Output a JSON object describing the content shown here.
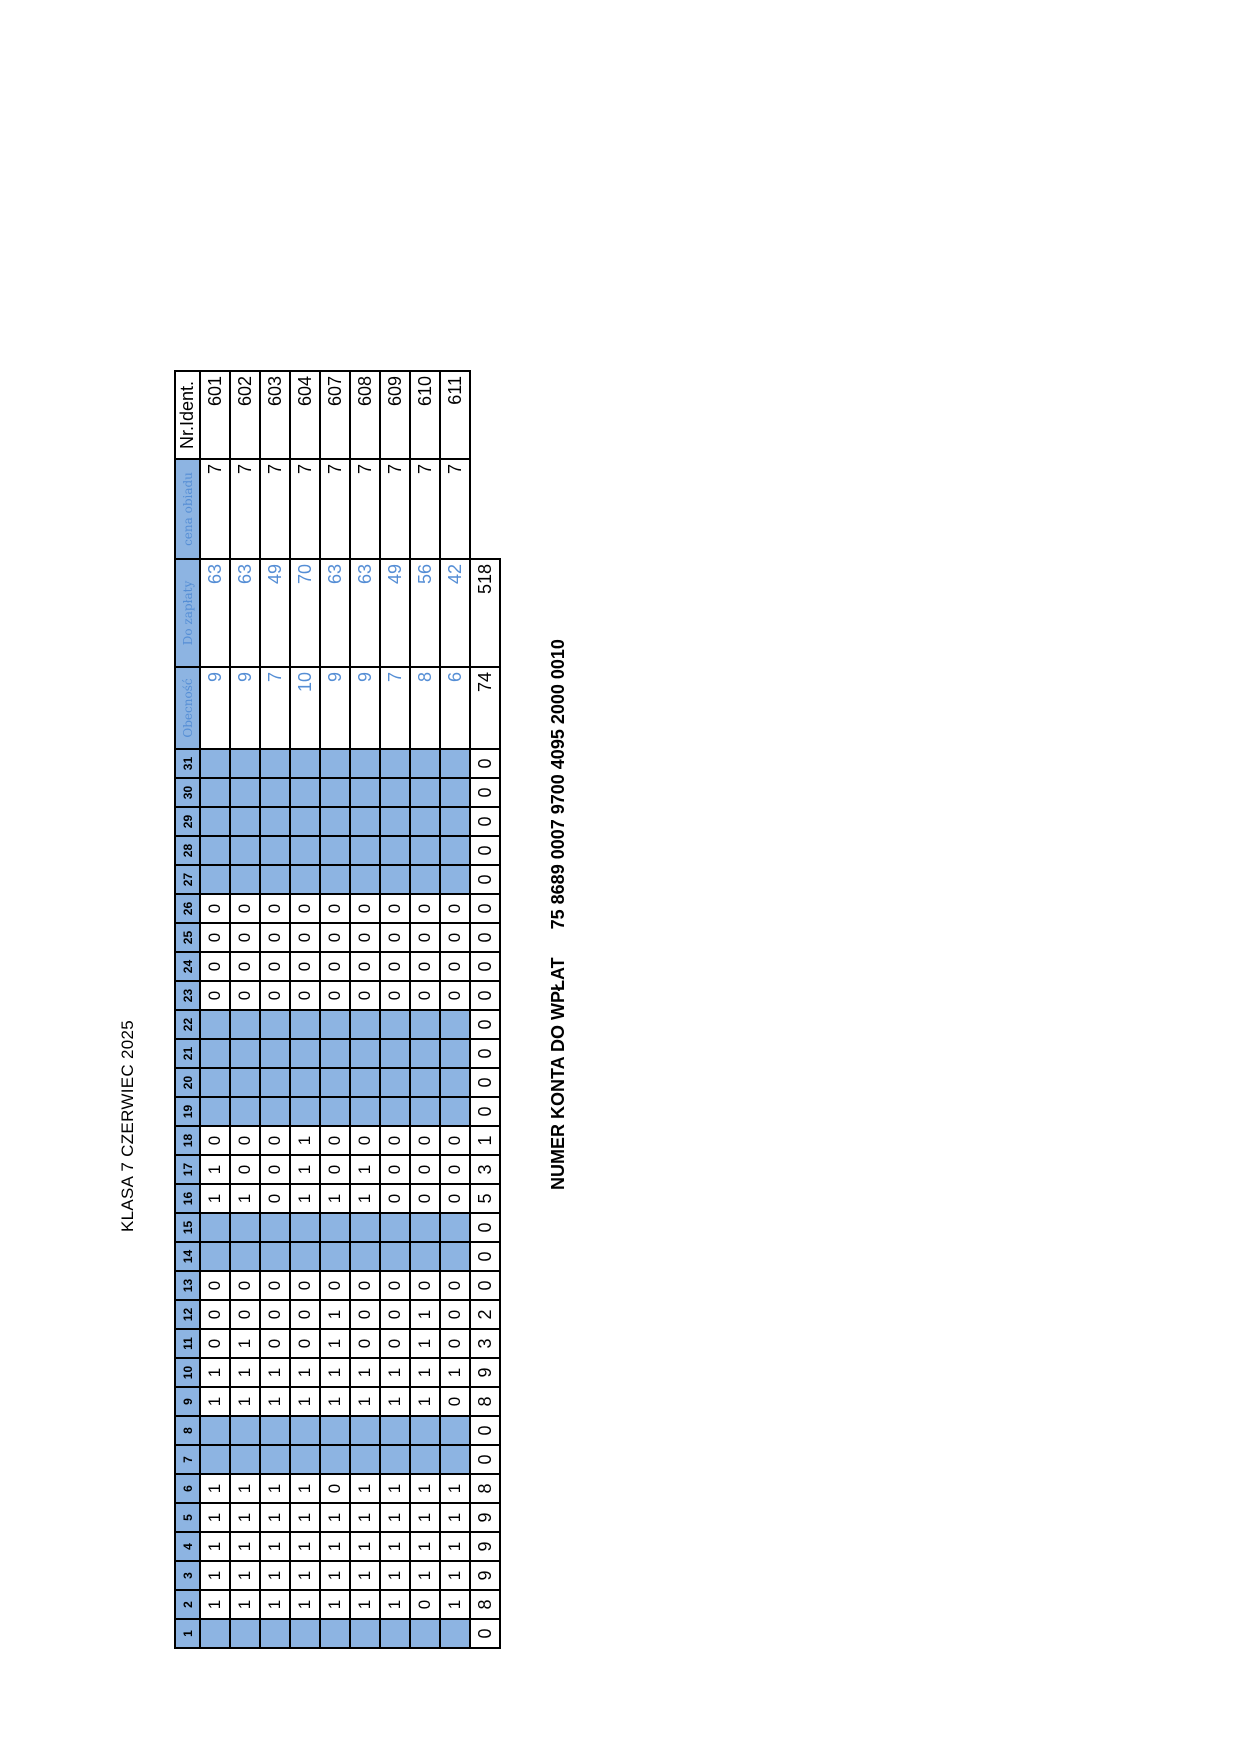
{
  "title": "KLASA 7 CZERWIEC 2025",
  "table": {
    "day_headers": [
      "1",
      "2",
      "3",
      "4",
      "5",
      "6",
      "7",
      "8",
      "9",
      "10",
      "11",
      "12",
      "13",
      "14",
      "15",
      "16",
      "17",
      "18",
      "19",
      "20",
      "21",
      "22",
      "23",
      "24",
      "25",
      "26",
      "27",
      "28",
      "29",
      "30",
      "31"
    ],
    "col_obecnosc": "Obecność",
    "col_do_zaplaty": "Do zapłaty",
    "col_cena_obiadu": "cena obiadu",
    "col_nr_ident": "Nr.Ident.",
    "blue_days": [
      1,
      7,
      8,
      14,
      15,
      19,
      20,
      21,
      22,
      27,
      28,
      29,
      30,
      31
    ],
    "rows": [
      {
        "days": [
          "",
          "1",
          "1",
          "1",
          "1",
          "1",
          "",
          "",
          "1",
          "1",
          "0",
          "0",
          "0",
          "",
          "",
          "1",
          "1",
          "0",
          "",
          "",
          "",
          "",
          "0",
          "0",
          "0",
          "0",
          "",
          "",
          "",
          "",
          ""
        ],
        "obecnosc": "9",
        "do_zaplaty": "63",
        "cena": "7",
        "nr": "601"
      },
      {
        "days": [
          "",
          "1",
          "1",
          "1",
          "1",
          "1",
          "",
          "",
          "1",
          "1",
          "1",
          "0",
          "0",
          "",
          "",
          "1",
          "0",
          "0",
          "",
          "",
          "",
          "",
          "0",
          "0",
          "0",
          "0",
          "",
          "",
          "",
          "",
          ""
        ],
        "obecnosc": "9",
        "do_zaplaty": "63",
        "cena": "7",
        "nr": "602"
      },
      {
        "days": [
          "",
          "1",
          "1",
          "1",
          "1",
          "1",
          "",
          "",
          "1",
          "1",
          "0",
          "0",
          "0",
          "",
          "",
          "0",
          "0",
          "0",
          "",
          "",
          "",
          "",
          "0",
          "0",
          "0",
          "0",
          "",
          "",
          "",
          "",
          ""
        ],
        "obecnosc": "7",
        "do_zaplaty": "49",
        "cena": "7",
        "nr": "603"
      },
      {
        "days": [
          "",
          "1",
          "1",
          "1",
          "1",
          "1",
          "",
          "",
          "1",
          "1",
          "0",
          "0",
          "0",
          "",
          "",
          "1",
          "1",
          "1",
          "",
          "",
          "",
          "",
          "0",
          "0",
          "0",
          "0",
          "",
          "",
          "",
          "",
          ""
        ],
        "obecnosc": "10",
        "do_zaplaty": "70",
        "cena": "7",
        "nr": "604"
      },
      {
        "days": [
          "",
          "1",
          "1",
          "1",
          "1",
          "0",
          "",
          "",
          "1",
          "1",
          "1",
          "1",
          "0",
          "",
          "",
          "1",
          "0",
          "0",
          "",
          "",
          "",
          "",
          "0",
          "0",
          "0",
          "0",
          "",
          "",
          "",
          "",
          ""
        ],
        "obecnosc": "9",
        "do_zaplaty": "63",
        "cena": "7",
        "nr": "607"
      },
      {
        "days": [
          "",
          "1",
          "1",
          "1",
          "1",
          "1",
          "",
          "",
          "1",
          "1",
          "0",
          "0",
          "0",
          "",
          "",
          "1",
          "1",
          "0",
          "",
          "",
          "",
          "",
          "0",
          "0",
          "0",
          "0",
          "",
          "",
          "",
          "",
          ""
        ],
        "obecnosc": "9",
        "do_zaplaty": "63",
        "cena": "7",
        "nr": "608"
      },
      {
        "days": [
          "",
          "1",
          "1",
          "1",
          "1",
          "1",
          "",
          "",
          "1",
          "1",
          "0",
          "0",
          "0",
          "",
          "",
          "0",
          "0",
          "0",
          "",
          "",
          "",
          "",
          "0",
          "0",
          "0",
          "0",
          "",
          "",
          "",
          "",
          ""
        ],
        "obecnosc": "7",
        "do_zaplaty": "49",
        "cena": "7",
        "nr": "609"
      },
      {
        "days": [
          "",
          "0",
          "1",
          "1",
          "1",
          "1",
          "",
          "",
          "1",
          "1",
          "1",
          "1",
          "0",
          "",
          "",
          "0",
          "0",
          "0",
          "",
          "",
          "",
          "",
          "0",
          "0",
          "0",
          "0",
          "",
          "",
          "",
          "",
          ""
        ],
        "obecnosc": "8",
        "do_zaplaty": "56",
        "cena": "7",
        "nr": "610"
      },
      {
        "days": [
          "",
          "1",
          "1",
          "1",
          "1",
          "1",
          "",
          "",
          "0",
          "1",
          "0",
          "0",
          "0",
          "",
          "",
          "0",
          "0",
          "0",
          "",
          "",
          "",
          "",
          "0",
          "0",
          "0",
          "0",
          "",
          "",
          "",
          "",
          ""
        ],
        "obecnosc": "6",
        "do_zaplaty": "42",
        "cena": "7",
        "nr": "611"
      }
    ],
    "totals": {
      "days": [
        "0",
        "8",
        "9",
        "9",
        "9",
        "8",
        "0",
        "0",
        "8",
        "9",
        "3",
        "2",
        "0",
        "0",
        "0",
        "5",
        "3",
        "1",
        "0",
        "0",
        "0",
        "0",
        "0",
        "0",
        "0",
        "0",
        "0",
        "0",
        "0",
        "0",
        "0"
      ],
      "obecnosc": "74",
      "do_zaplaty": "518"
    }
  },
  "account": {
    "label": "NUMER KONTA  DO WPŁAT",
    "number": "75 8689 0007 9700 4095 2000 0010"
  }
}
